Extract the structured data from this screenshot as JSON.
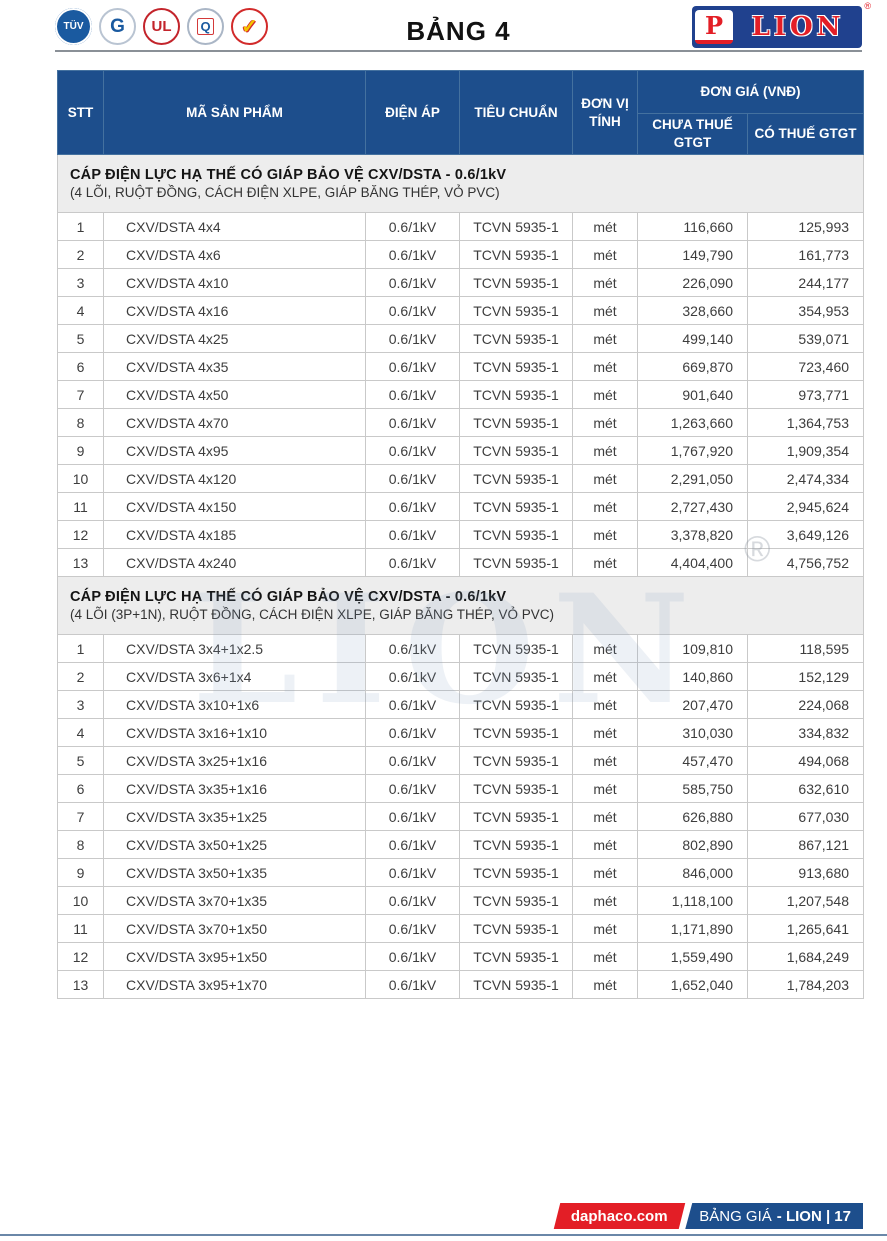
{
  "page": {
    "title": "BẢNG 4"
  },
  "brand": {
    "p_letter": "P",
    "name": "LION",
    "registered": "®"
  },
  "cert_logos": {
    "tuv": "TÜV",
    "jasanz": "G",
    "ul": "UL",
    "quacert": "Q",
    "hvnclc": "✓"
  },
  "table": {
    "columns": {
      "stt": "STT",
      "product": "MÃ SẢN PHẨM",
      "voltage": "ĐIỆN ÁP",
      "standard": "TIÊU CHUẨN",
      "unit": "ĐƠN VỊ TÍNH",
      "price_group": "ĐƠN GIÁ (VNĐ)",
      "price_ex": "CHƯA THUẾ GTGT",
      "price_inc": "CÓ THUẾ GTGT"
    },
    "sections": [
      {
        "title": "CÁP ĐIỆN LỰC HẠ THẾ CÓ GIÁP BẢO VỆ CXV/DSTA - 0.6/1kV",
        "subtitle": "(4 LÕI, RUỘT ĐỒNG, CÁCH ĐIỆN XLPE, GIÁP BĂNG THÉP, VỎ PVC)",
        "rows": [
          [
            "1",
            "CXV/DSTA 4x4",
            "0.6/1kV",
            "TCVN 5935-1",
            "mét",
            "116,660",
            "125,993"
          ],
          [
            "2",
            "CXV/DSTA 4x6",
            "0.6/1kV",
            "TCVN 5935-1",
            "mét",
            "149,790",
            "161,773"
          ],
          [
            "3",
            "CXV/DSTA 4x10",
            "0.6/1kV",
            "TCVN 5935-1",
            "mét",
            "226,090",
            "244,177"
          ],
          [
            "4",
            "CXV/DSTA 4x16",
            "0.6/1kV",
            "TCVN 5935-1",
            "mét",
            "328,660",
            "354,953"
          ],
          [
            "5",
            "CXV/DSTA 4x25",
            "0.6/1kV",
            "TCVN 5935-1",
            "mét",
            "499,140",
            "539,071"
          ],
          [
            "6",
            "CXV/DSTA 4x35",
            "0.6/1kV",
            "TCVN 5935-1",
            "mét",
            "669,870",
            "723,460"
          ],
          [
            "7",
            "CXV/DSTA 4x50",
            "0.6/1kV",
            "TCVN 5935-1",
            "mét",
            "901,640",
            "973,771"
          ],
          [
            "8",
            "CXV/DSTA 4x70",
            "0.6/1kV",
            "TCVN 5935-1",
            "mét",
            "1,263,660",
            "1,364,753"
          ],
          [
            "9",
            "CXV/DSTA 4x95",
            "0.6/1kV",
            "TCVN 5935-1",
            "mét",
            "1,767,920",
            "1,909,354"
          ],
          [
            "10",
            "CXV/DSTA 4x120",
            "0.6/1kV",
            "TCVN 5935-1",
            "mét",
            "2,291,050",
            "2,474,334"
          ],
          [
            "11",
            "CXV/DSTA 4x150",
            "0.6/1kV",
            "TCVN 5935-1",
            "mét",
            "2,727,430",
            "2,945,624"
          ],
          [
            "12",
            "CXV/DSTA 4x185",
            "0.6/1kV",
            "TCVN 5935-1",
            "mét",
            "3,378,820",
            "3,649,126"
          ],
          [
            "13",
            "CXV/DSTA 4x240",
            "0.6/1kV",
            "TCVN 5935-1",
            "mét",
            "4,404,400",
            "4,756,752"
          ]
        ]
      },
      {
        "title": "CÁP ĐIỆN LỰC HẠ THẾ CÓ GIÁP BẢO VỆ CXV/DSTA - 0.6/1kV",
        "subtitle": "(4 LÕI (3P+1N), RUỘT ĐỒNG, CÁCH ĐIỆN XLPE, GIÁP BĂNG THÉP, VỎ PVC)",
        "rows": [
          [
            "1",
            "CXV/DSTA 3x4+1x2.5",
            "0.6/1kV",
            "TCVN 5935-1",
            "mét",
            "109,810",
            "118,595"
          ],
          [
            "2",
            "CXV/DSTA 3x6+1x4",
            "0.6/1kV",
            "TCVN 5935-1",
            "mét",
            "140,860",
            "152,129"
          ],
          [
            "3",
            "CXV/DSTA 3x10+1x6",
            "0.6/1kV",
            "TCVN 5935-1",
            "mét",
            "207,470",
            "224,068"
          ],
          [
            "4",
            "CXV/DSTA 3x16+1x10",
            "0.6/1kV",
            "TCVN 5935-1",
            "mét",
            "310,030",
            "334,832"
          ],
          [
            "5",
            "CXV/DSTA 3x25+1x16",
            "0.6/1kV",
            "TCVN 5935-1",
            "mét",
            "457,470",
            "494,068"
          ],
          [
            "6",
            "CXV/DSTA 3x35+1x16",
            "0.6/1kV",
            "TCVN 5935-1",
            "mét",
            "585,750",
            "632,610"
          ],
          [
            "7",
            "CXV/DSTA 3x35+1x25",
            "0.6/1kV",
            "TCVN 5935-1",
            "mét",
            "626,880",
            "677,030"
          ],
          [
            "8",
            "CXV/DSTA 3x50+1x25",
            "0.6/1kV",
            "TCVN 5935-1",
            "mét",
            "802,890",
            "867,121"
          ],
          [
            "9",
            "CXV/DSTA 3x50+1x35",
            "0.6/1kV",
            "TCVN 5935-1",
            "mét",
            "846,000",
            "913,680"
          ],
          [
            "10",
            "CXV/DSTA 3x70+1x35",
            "0.6/1kV",
            "TCVN 5935-1",
            "mét",
            "1,118,100",
            "1,207,548"
          ],
          [
            "11",
            "CXV/DSTA 3x70+1x50",
            "0.6/1kV",
            "TCVN 5935-1",
            "mét",
            "1,171,890",
            "1,265,641"
          ],
          [
            "12",
            "CXV/DSTA 3x95+1x50",
            "0.6/1kV",
            "TCVN 5935-1",
            "mét",
            "1,559,490",
            "1,684,249"
          ],
          [
            "13",
            "CXV/DSTA 3x95+1x70",
            "0.6/1kV",
            "TCVN 5935-1",
            "mét",
            "1,652,040",
            "1,784,203"
          ]
        ]
      }
    ]
  },
  "watermark": {
    "text": "LION",
    "registered": "®"
  },
  "footer": {
    "website": "daphaco.com",
    "label": "BẢNG GIÁ",
    "suffix": "- LION | 17"
  },
  "colors": {
    "header_blue": "#1d4e8c",
    "accent_red": "#e31e26"
  }
}
